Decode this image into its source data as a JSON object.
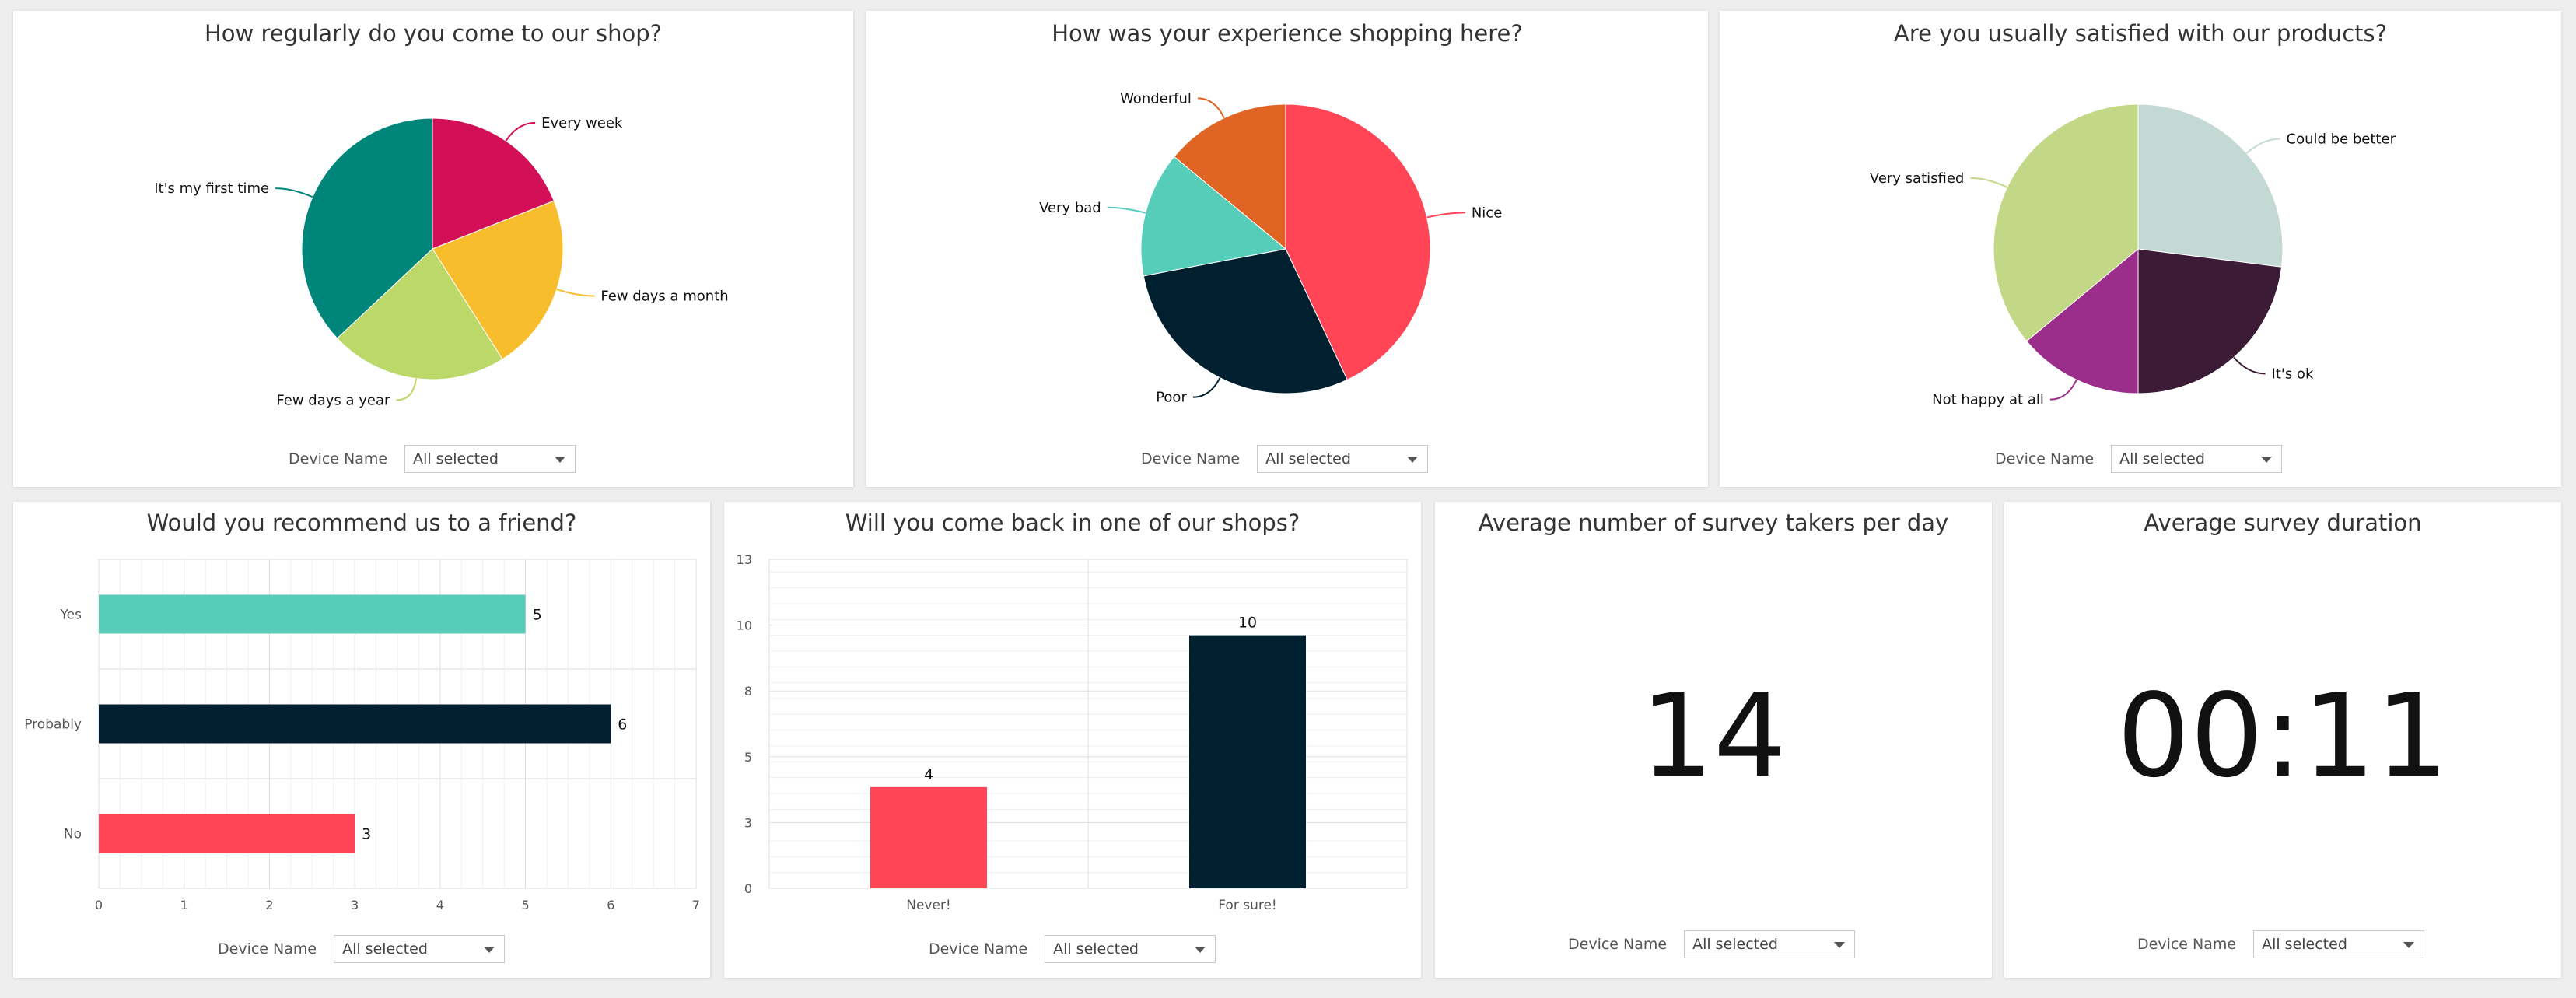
{
  "filter": {
    "label": "Device Name",
    "value": "All selected"
  },
  "colors": {
    "teal_dark": "#00857A",
    "crimson": "#D30F58",
    "amber": "#F8BD2D",
    "lime": "#BBD869",
    "coral": "#FF4556",
    "navy": "#001F2F",
    "mint": "#56CDB9",
    "orange": "#E06525",
    "sage": "#C5D9D4",
    "plum": "#3B1B36",
    "magenta": "#9B2D8B",
    "pale_lime": "#C3D886"
  },
  "chart_data": [
    {
      "type": "pie",
      "title": "How regularly do you come to our shop?",
      "slices": [
        {
          "label": "Every week",
          "value": 19,
          "color": "#D30F58"
        },
        {
          "label": "Few days a month",
          "value": 22,
          "color": "#F8BD2D"
        },
        {
          "label": "Few days a year",
          "value": 22,
          "color": "#BBD869"
        },
        {
          "label": "It's my first time",
          "value": 37,
          "color": "#00857A"
        }
      ]
    },
    {
      "type": "pie",
      "title": "How was your experience shopping here?",
      "slices": [
        {
          "label": "Nice",
          "value": 43,
          "color": "#FF4556"
        },
        {
          "label": "Poor",
          "value": 29,
          "color": "#001F2F"
        },
        {
          "label": "Very bad",
          "value": 14,
          "color": "#56CDB9"
        },
        {
          "label": "Wonderful",
          "value": 14,
          "color": "#E06525"
        }
      ]
    },
    {
      "type": "pie",
      "title": "Are you usually satisfied with our products?",
      "slices": [
        {
          "label": "Could be better",
          "value": 27,
          "color": "#C5D9D4"
        },
        {
          "label": "It's ok",
          "value": 23,
          "color": "#3B1B36"
        },
        {
          "label": "Not happy at all",
          "value": 14,
          "color": "#9B2D8B"
        },
        {
          "label": "Very satisfied",
          "value": 36,
          "color": "#C3D886"
        }
      ]
    },
    {
      "type": "bar",
      "orientation": "horizontal",
      "title": "Would you recommend us to a friend?",
      "categories": [
        "Yes",
        "Probably",
        "No"
      ],
      "values": [
        5,
        6,
        3
      ],
      "colors": [
        "#56CDB9",
        "#001F2F",
        "#FF4556"
      ],
      "xlim": [
        0,
        7
      ],
      "ticks": [
        "0",
        "1",
        "2",
        "3",
        "4",
        "5",
        "6",
        "7"
      ],
      "grid": true
    },
    {
      "type": "bar",
      "orientation": "vertical",
      "title": "Will you come back in one of our shops?",
      "categories": [
        "Never!",
        "For sure!"
      ],
      "values": [
        4,
        10
      ],
      "colors": [
        "#FF4556",
        "#001F2F"
      ],
      "ylim": [
        0,
        13
      ],
      "ticks": [
        "0",
        "3",
        "5",
        "8",
        "10",
        "13"
      ],
      "grid": true
    }
  ],
  "kpis": [
    {
      "title": "Average number of survey takers per day",
      "value": "14"
    },
    {
      "title": "Average survey duration",
      "value": "00:11"
    }
  ]
}
